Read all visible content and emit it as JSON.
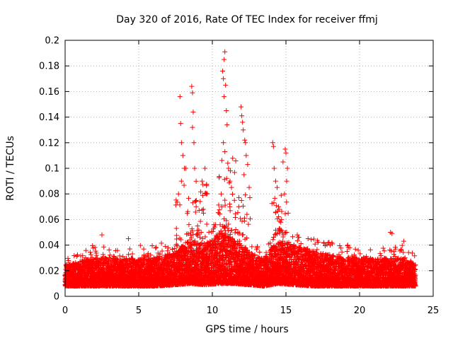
{
  "chart_data": {
    "type": "scatter",
    "title": "Day 320 of 2016, Rate Of TEC Index for receiver ffmj",
    "xlabel": "GPS time / hours",
    "ylabel": "ROTI / TECUs",
    "xlim": [
      0,
      25
    ],
    "ylim": [
      0,
      0.2
    ],
    "x_ticks": [
      0,
      5,
      10,
      15,
      20,
      25
    ],
    "x_tick_labels": [
      "0",
      "5",
      "10",
      "15",
      "20",
      "25"
    ],
    "y_ticks": [
      0,
      0.02,
      0.04,
      0.06,
      0.08,
      0.1,
      0.12,
      0.14,
      0.16,
      0.18,
      0.2
    ],
    "y_tick_labels": [
      "0",
      "0.02",
      "0.04",
      "0.06",
      "0.08",
      "0.1",
      "0.12",
      "0.14",
      "0.16",
      "0.18",
      "0.2"
    ],
    "grid": true,
    "marker": "+",
    "series": [
      {
        "name": "ROTI",
        "color": "#ff0000",
        "x": [
          7.8,
          7.85,
          7.9,
          8.0,
          8.1,
          8.6,
          8.65,
          8.7,
          8.65,
          8.75,
          8.8,
          7.7,
          7.9,
          8.2,
          8.9,
          9.3,
          9.5,
          9.6,
          9.4,
          9.0,
          10.7,
          10.75,
          10.8,
          10.85,
          10.9,
          10.8,
          10.95,
          11.0,
          10.75,
          10.85,
          11.1,
          11.2,
          10.6,
          10.65,
          11.05,
          11.3,
          11.5,
          11.95,
          12.0,
          12.05,
          12.1,
          12.2,
          12.25,
          12.3,
          12.4,
          12.5,
          12.15,
          11.8,
          14.1,
          14.15,
          14.2,
          14.3,
          14.4,
          14.5,
          14.8,
          14.95,
          15.0,
          15.1,
          15.05,
          14.9,
          15.15,
          14.7,
          16.5,
          18.0,
          19.2,
          22.1,
          22.2,
          23.0,
          2.5,
          4.3
        ],
        "y": [
          0.156,
          0.135,
          0.12,
          0.11,
          0.1,
          0.164,
          0.159,
          0.144,
          0.132,
          0.12,
          0.1,
          0.08,
          0.09,
          0.1,
          0.07,
          0.09,
          0.1,
          0.08,
          0.065,
          0.055,
          0.176,
          0.17,
          0.185,
          0.191,
          0.165,
          0.156,
          0.145,
          0.134,
          0.12,
          0.113,
          0.1,
          0.09,
          0.08,
          0.07,
          0.104,
          0.085,
          0.075,
          0.148,
          0.141,
          0.136,
          0.13,
          0.122,
          0.12,
          0.11,
          0.103,
          0.085,
          0.095,
          0.07,
          0.12,
          0.117,
          0.1,
          0.09,
          0.085,
          0.07,
          0.105,
          0.115,
          0.112,
          0.1,
          0.09,
          0.08,
          0.065,
          0.06,
          0.045,
          0.04,
          0.04,
          0.05,
          0.049,
          0.043,
          0.048,
          0.045
        ],
        "baseline_profile": {
          "description": "dense background of ROTI values across the full day",
          "hours": [
            0,
            2,
            4,
            6,
            7.5,
            8.5,
            9.5,
            10.5,
            11.5,
            12.5,
            13.5,
            14.5,
            15.5,
            17,
            19,
            21,
            23,
            23.8
          ],
          "typical_high": [
            0.025,
            0.03,
            0.03,
            0.03,
            0.035,
            0.045,
            0.04,
            0.05,
            0.045,
            0.035,
            0.03,
            0.045,
            0.04,
            0.035,
            0.03,
            0.03,
            0.03,
            0.025
          ],
          "typical_low": [
            0.008,
            0.008,
            0.008,
            0.008,
            0.009,
            0.01,
            0.009,
            0.01,
            0.01,
            0.009,
            0.008,
            0.01,
            0.009,
            0.008,
            0.008,
            0.008,
            0.008,
            0.008
          ]
        }
      }
    ]
  }
}
